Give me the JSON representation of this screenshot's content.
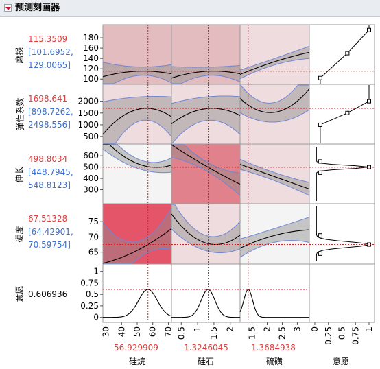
{
  "window": {
    "title": "预测刻画器"
  },
  "responses": [
    {
      "name": "磨损",
      "value": "115.3509",
      "ci_low": "[101.6952,",
      "ci_high": "129.0065]"
    },
    {
      "name": "弹性系数",
      "value": "1698.641",
      "ci_low": "[898.7262,",
      "ci_high": "2498.556]"
    },
    {
      "name": "伸长",
      "value": "498.8034",
      "ci_low": "[448.7945,",
      "ci_high": "548.8123]"
    },
    {
      "name": "硬度",
      "value": "67.51328",
      "ci_low": "[64.42901,",
      "ci_high": "70.59754]"
    },
    {
      "name": "意愿",
      "value": "0.606936"
    }
  ],
  "factors": [
    {
      "name": "硅烷",
      "value": "56.929909",
      "ticks": [
        "30",
        "40",
        "50",
        "60",
        "70"
      ]
    },
    {
      "name": "硅石",
      "value": "1.3246045",
      "ticks": [
        "0.5",
        "1",
        "1.5",
        "2"
      ]
    },
    {
      "name": "硫磺",
      "value": "1.3684938",
      "ticks": [
        "1.5",
        "2",
        "2.5",
        "3"
      ]
    },
    {
      "name": "意愿",
      "ticks": [
        "0",
        "0.25",
        "0.5",
        "0.75",
        "1"
      ]
    }
  ],
  "y_ticks": {
    "row0": [
      "180",
      "160",
      "140",
      "120",
      "100"
    ],
    "row1": [
      "2000",
      "1500",
      "1000",
      "500"
    ],
    "row2": [
      "600",
      "500",
      "400",
      "300"
    ],
    "row3": [
      "75",
      "70",
      "65"
    ],
    "row4": [
      "1",
      "0.75",
      "0.5",
      "0.25",
      "0"
    ]
  },
  "chart_data": {
    "type": "line",
    "title": "预测刻画器",
    "factors": [
      {
        "name": "硅烷",
        "range": [
          28,
          72
        ],
        "current": 56.929909
      },
      {
        "name": "硅石",
        "range": [
          0.2,
          2.3
        ],
        "current": 1.3246045
      },
      {
        "name": "硫磺",
        "range": [
          1.1,
          3.4
        ],
        "current": 1.3684938
      }
    ],
    "responses": [
      {
        "name": "磨损",
        "current": 115.3509,
        "ci": [
          101.6952,
          129.0065
        ],
        "ylim": [
          95,
          200
        ]
      },
      {
        "name": "弹性系数",
        "current": 1698.641,
        "ci": [
          898.7262,
          2498.556
        ],
        "ylim": [
          300,
          2600
        ]
      },
      {
        "name": "伸长",
        "current": 498.8034,
        "ci": [
          448.7945,
          548.8123
        ],
        "ylim": [
          200,
          680
        ]
      },
      {
        "name": "硬度",
        "current": 67.51328,
        "ci": [
          64.42901,
          70.59754
        ],
        "ylim": [
          62,
          80
        ]
      },
      {
        "name": "意愿",
        "current": 0.606936,
        "ylim": [
          -0.05,
          1.1
        ]
      }
    ],
    "desirability_x": [
      0,
      0.25,
      0.5,
      0.75,
      1
    ]
  },
  "colors": {
    "curve": "#000000",
    "band": "#8c8c8c",
    "band_edge": "#6f86d6",
    "crosshair": "#cc2222",
    "grid_border": "#9a9a9a",
    "cell_light": "#eedcde",
    "cell_mid": "#e2bcbf",
    "cell_strong": "#e0818b",
    "cell_hot": "#e5556a",
    "cell_plain": "#f4f4f4",
    "value_red": "#e03c3c",
    "value_blue": "#3a6fd1"
  }
}
